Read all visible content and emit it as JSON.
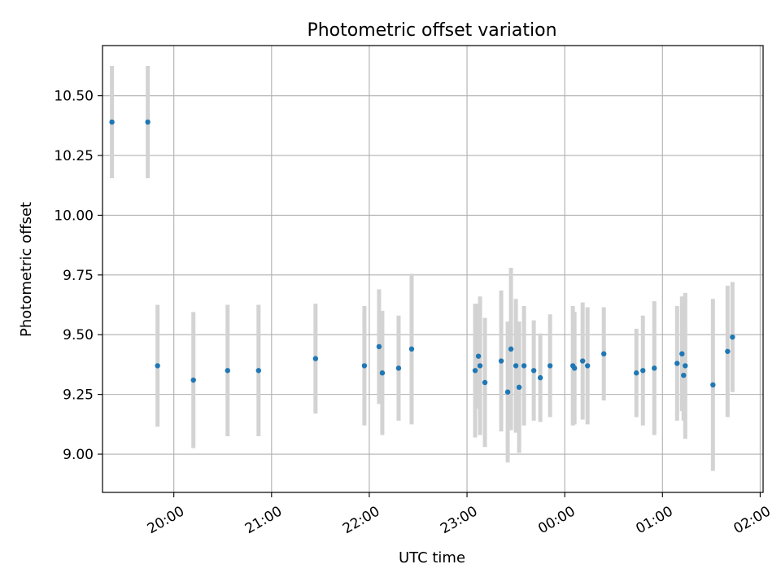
{
  "chart_data": {
    "type": "scatter",
    "title": "Photometric offset variation",
    "xlabel": "UTC time",
    "ylabel": "Photometric offset",
    "x_unit": "hours since 19:00 UTC",
    "xlim": [
      0.27,
      7.03
    ],
    "ylim": [
      8.84,
      10.71
    ],
    "grid": true,
    "x_tick_labels": [
      "20:00",
      "21:00",
      "22:00",
      "23:00",
      "00:00",
      "01:00",
      "02:00"
    ],
    "y_tick_labels": [
      "9.00",
      "9.25",
      "9.50",
      "9.75",
      "10.00",
      "10.25",
      "10.50"
    ],
    "colors": {
      "point": "#1f77b4",
      "errorbar": "#d3d3d3",
      "grid": "#b0b0b0"
    },
    "series": [
      {
        "name": "",
        "points": [
          {
            "x": "19:22",
            "y": 10.39,
            "yerr": 0.235
          },
          {
            "x": "19:44",
            "y": 10.39,
            "yerr": 0.235
          },
          {
            "x": "19:50",
            "y": 9.37,
            "yerr": 0.255
          },
          {
            "x": "20:12",
            "y": 9.31,
            "yerr": 0.285
          },
          {
            "x": "20:33",
            "y": 9.35,
            "yerr": 0.275
          },
          {
            "x": "20:52",
            "y": 9.35,
            "yerr": 0.275
          },
          {
            "x": "21:27",
            "y": 9.4,
            "yerr": 0.23
          },
          {
            "x": "21:57",
            "y": 9.37,
            "yerr": 0.25
          },
          {
            "x": "22:06",
            "y": 9.45,
            "yerr": 0.24
          },
          {
            "x": "22:08",
            "y": 9.34,
            "yerr": 0.26
          },
          {
            "x": "22:18",
            "y": 9.36,
            "yerr": 0.22
          },
          {
            "x": "22:26",
            "y": 9.44,
            "yerr": 0.315
          },
          {
            "x": "23:05",
            "y": 9.35,
            "yerr": 0.28
          },
          {
            "x": "23:07",
            "y": 9.41,
            "yerr": 0.22
          },
          {
            "x": "23:08",
            "y": 9.37,
            "yerr": 0.29
          },
          {
            "x": "23:11",
            "y": 9.3,
            "yerr": 0.27
          },
          {
            "x": "23:21",
            "y": 9.39,
            "yerr": 0.295
          },
          {
            "x": "23:25",
            "y": 9.26,
            "yerr": 0.295
          },
          {
            "x": "23:27",
            "y": 9.44,
            "yerr": 0.34
          },
          {
            "x": "23:30",
            "y": 9.37,
            "yerr": 0.28
          },
          {
            "x": "23:32",
            "y": 9.28,
            "yerr": 0.275
          },
          {
            "x": "23:35",
            "y": 9.37,
            "yerr": 0.25
          },
          {
            "x": "23:41",
            "y": 9.35,
            "yerr": 0.21
          },
          {
            "x": "23:45",
            "y": 9.32,
            "yerr": 0.185
          },
          {
            "x": "23:51",
            "y": 9.37,
            "yerr": 0.215
          },
          {
            "x": "00:05",
            "y": 9.37,
            "yerr": 0.25
          },
          {
            "x": "00:06",
            "y": 9.36,
            "yerr": 0.235
          },
          {
            "x": "00:11",
            "y": 9.39,
            "yerr": 0.245
          },
          {
            "x": "00:14",
            "y": 9.37,
            "yerr": 0.245
          },
          {
            "x": "00:24",
            "y": 9.42,
            "yerr": 0.195
          },
          {
            "x": "00:44",
            "y": 9.34,
            "yerr": 0.185
          },
          {
            "x": "00:48",
            "y": 9.35,
            "yerr": 0.23
          },
          {
            "x": "00:55",
            "y": 9.36,
            "yerr": 0.28
          },
          {
            "x": "01:09",
            "y": 9.38,
            "yerr": 0.24
          },
          {
            "x": "01:12",
            "y": 9.42,
            "yerr": 0.24
          },
          {
            "x": "01:13",
            "y": 9.33,
            "yerr": 0.19
          },
          {
            "x": "01:14",
            "y": 9.37,
            "yerr": 0.305
          },
          {
            "x": "01:31",
            "y": 9.29,
            "yerr": 0.36
          },
          {
            "x": "01:40",
            "y": 9.43,
            "yerr": 0.275
          },
          {
            "x": "01:43",
            "y": 9.49,
            "yerr": 0.23
          }
        ]
      }
    ]
  }
}
